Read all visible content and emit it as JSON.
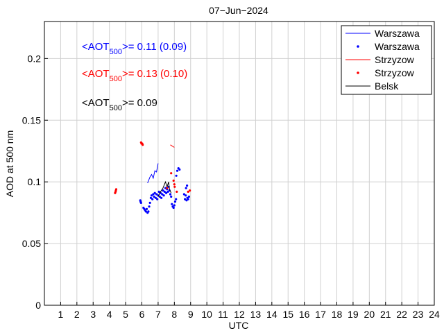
{
  "chart_data": {
    "type": "scatter",
    "title": "07−Jun−2024",
    "xlabel": "UTC",
    "ylabel": "AOD at 500 nm",
    "xlim": [
      0,
      24
    ],
    "ylim": [
      0,
      0.23
    ],
    "x_ticks": [
      1,
      2,
      3,
      4,
      5,
      6,
      7,
      8,
      9,
      10,
      11,
      12,
      13,
      14,
      15,
      16,
      17,
      18,
      19,
      20,
      21,
      22,
      23,
      24
    ],
    "y_ticks": [
      0,
      0.05,
      0.1,
      0.15,
      0.2
    ],
    "y_tick_labels": [
      "0",
      "0.05",
      "0.1",
      "0.15",
      "0.2"
    ],
    "grid": "vertical",
    "legend_position": "top-right",
    "legend": [
      {
        "label": "Warszawa",
        "style": "line",
        "color": "#0000ff"
      },
      {
        "label": "Warszawa",
        "style": "points",
        "color": "#0000ff"
      },
      {
        "label": "Strzyzow",
        "style": "line",
        "color": "#ff0000"
      },
      {
        "label": "Strzyzow",
        "style": "points",
        "color": "#ff0000"
      },
      {
        "label": "Belsk",
        "style": "line",
        "color": "#000000"
      }
    ],
    "annotations": [
      {
        "prefix": "<AOT",
        "sub": "500",
        "suffix": ">= 0.11 (0.09)",
        "color": "#0000ff"
      },
      {
        "prefix": "<AOT",
        "sub": "500",
        "suffix": ">= 0.13 (0.10)",
        "color": "#ff0000"
      },
      {
        "prefix": "<AOT",
        "sub": "500",
        "suffix": ">= 0.09",
        "color": "#000000"
      }
    ],
    "series": [
      {
        "name": "Warszawa",
        "style": "line",
        "color": "#0000ff",
        "points": [
          [
            6.35,
            0.099
          ],
          [
            6.5,
            0.104
          ],
          [
            6.6,
            0.106
          ],
          [
            6.7,
            0.103
          ],
          [
            6.8,
            0.109
          ],
          [
            6.9,
            0.108
          ],
          [
            7.0,
            0.115
          ]
        ]
      },
      {
        "name": "Warszawa",
        "style": "points",
        "color": "#0000ff",
        "points": [
          [
            5.9,
            0.085
          ],
          [
            5.92,
            0.084
          ],
          [
            5.95,
            0.083
          ],
          [
            6.1,
            0.079
          ],
          [
            6.15,
            0.078
          ],
          [
            6.2,
            0.077
          ],
          [
            6.25,
            0.076
          ],
          [
            6.3,
            0.078
          ],
          [
            6.35,
            0.075
          ],
          [
            6.4,
            0.076
          ],
          [
            6.45,
            0.08
          ],
          [
            6.5,
            0.083
          ],
          [
            6.55,
            0.087
          ],
          [
            6.6,
            0.089
          ],
          [
            6.65,
            0.086
          ],
          [
            6.7,
            0.09
          ],
          [
            6.75,
            0.088
          ],
          [
            6.8,
            0.091
          ],
          [
            6.85,
            0.087
          ],
          [
            6.9,
            0.09
          ],
          [
            6.95,
            0.086
          ],
          [
            7.0,
            0.089
          ],
          [
            7.05,
            0.092
          ],
          [
            7.1,
            0.088
          ],
          [
            7.15,
            0.091
          ],
          [
            7.2,
            0.087
          ],
          [
            7.25,
            0.09
          ],
          [
            7.3,
            0.093
          ],
          [
            7.35,
            0.089
          ],
          [
            7.4,
            0.092
          ],
          [
            7.45,
            0.095
          ],
          [
            7.5,
            0.091
          ],
          [
            7.55,
            0.094
          ],
          [
            7.6,
            0.092
          ],
          [
            7.65,
            0.096
          ],
          [
            7.7,
            0.093
          ],
          [
            7.75,
            0.09
          ],
          [
            7.8,
            0.088
          ],
          [
            7.85,
            0.082
          ],
          [
            7.9,
            0.08
          ],
          [
            7.95,
            0.079
          ],
          [
            8.0,
            0.081
          ],
          [
            8.05,
            0.084
          ],
          [
            8.1,
            0.086
          ],
          [
            8.12,
            0.105
          ],
          [
            8.18,
            0.109
          ],
          [
            8.25,
            0.111
          ],
          [
            8.32,
            0.11
          ],
          [
            8.6,
            0.09
          ],
          [
            8.65,
            0.086
          ],
          [
            8.7,
            0.089
          ],
          [
            8.75,
            0.085
          ],
          [
            8.8,
            0.087
          ],
          [
            8.85,
            0.086
          ],
          [
            8.9,
            0.088
          ],
          [
            8.72,
            0.095
          ],
          [
            8.78,
            0.097
          ]
        ]
      },
      {
        "name": "Strzyzow",
        "style": "line",
        "color": "#ff0000",
        "points": [
          [
            7.75,
            0.13
          ],
          [
            8.0,
            0.128
          ]
        ]
      },
      {
        "name": "Strzyzow",
        "style": "points",
        "color": "#ff0000",
        "points": [
          [
            4.35,
            0.091
          ],
          [
            4.38,
            0.092
          ],
          [
            4.4,
            0.093
          ],
          [
            4.42,
            0.094
          ],
          [
            5.95,
            0.132
          ],
          [
            5.98,
            0.131
          ],
          [
            6.02,
            0.131
          ],
          [
            6.05,
            0.13
          ],
          [
            7.55,
            0.095
          ],
          [
            7.8,
            0.107
          ],
          [
            7.95,
            0.101
          ],
          [
            8.0,
            0.098
          ],
          [
            8.02,
            0.096
          ],
          [
            8.15,
            0.092
          ],
          [
            8.85,
            0.092
          ],
          [
            8.95,
            0.093
          ]
        ]
      },
      {
        "name": "Belsk",
        "style": "line",
        "color": "#000000",
        "points": [
          [
            7.0,
            0.088
          ],
          [
            7.15,
            0.092
          ],
          [
            7.3,
            0.095
          ],
          [
            7.45,
            0.1
          ],
          [
            7.55,
            0.096
          ],
          [
            7.65,
            0.1
          ],
          [
            7.7,
            0.094
          ],
          [
            7.8,
            0.091
          ]
        ]
      }
    ]
  }
}
